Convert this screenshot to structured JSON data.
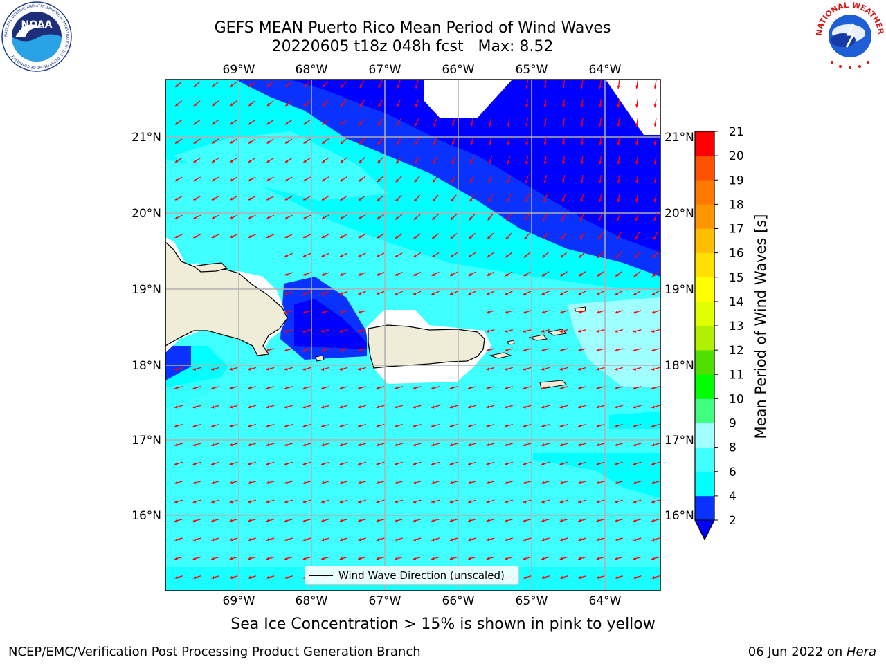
{
  "header": {
    "title_line1": "GEFS MEAN Puerto Rico Mean Period of Wind Waves",
    "title_line2": "20220605 t18z 048h fcst   Max: 8.52"
  },
  "logos": {
    "left": "NOAA",
    "left_ring_text": "NATIONAL OCEANIC AND ATMOSPHERIC ADMINISTRATION · U.S. DEPARTMENT OF COMMERCE",
    "right_ring_text": "NATIONAL WEATHER SERVICE"
  },
  "map": {
    "lon_labels": [
      "69°W",
      "68°W",
      "67°W",
      "66°W",
      "65°W",
      "64°W"
    ],
    "lat_labels": [
      "21°N",
      "20°N",
      "19°N",
      "18°N",
      "17°N",
      "16°N"
    ],
    "legend_label": "Wind Wave Direction (unscaled)",
    "arrow_color": "#ff0000",
    "land_color": "#efedd8"
  },
  "colorbar": {
    "label": "Mean Period of Wind Waves [s]",
    "levels": [
      "2",
      "4",
      "6",
      "8",
      "9",
      "10",
      "11",
      "12",
      "13",
      "14",
      "15",
      "16",
      "17",
      "18",
      "19",
      "20",
      "21"
    ],
    "colors": [
      "#0a32ff",
      "#00ffff",
      "#40ffff",
      "#a0ffff",
      "#40ff80",
      "#00ff00",
      "#50e000",
      "#b0f000",
      "#e0ff00",
      "#ffff00",
      "#ffe000",
      "#ffbe00",
      "#ff9600",
      "#ff7800",
      "#ff5000",
      "#ff0000"
    ],
    "under_color": "#0000ff"
  },
  "footer": {
    "note": "Sea Ice Concentration > 15% is shown in pink to yellow",
    "left": "NCEP/EMC/Verification Post Processing Product Generation Branch",
    "right_prefix": "06 Jun 2022 on ",
    "right_host": "Hera"
  }
}
